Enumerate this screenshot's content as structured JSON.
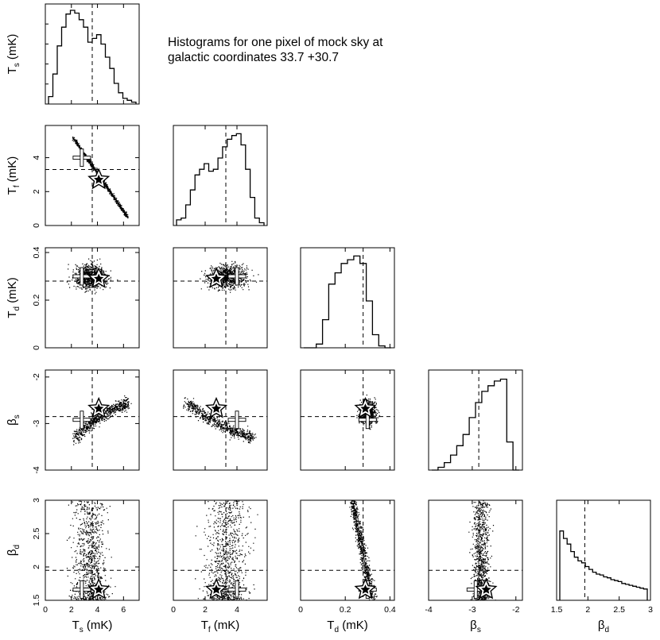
{
  "title": {
    "line1": "Histograms for one pixel of mock sky at",
    "line2": "galactic coordinates 33.7 +30.7"
  },
  "colors": {
    "ink": "#000000",
    "background": "#ffffff",
    "marker_fill": "#ffffff"
  },
  "chart_data": {
    "type": "scatter",
    "layout": "corner-plot (lower triangle of pairwise scatter plots, histograms on the diagonal)",
    "variables": [
      {
        "key": "Ts",
        "label_main": "T",
        "label_sub": "s",
        "label_unit": " (mK)",
        "range": [
          0,
          7.2
        ],
        "ticks": [
          0,
          2,
          4,
          6
        ],
        "true_value": 3.6,
        "best_fit": 4.1,
        "cross": 2.8
      },
      {
        "key": "Tf",
        "label_main": "T",
        "label_sub": "f",
        "label_unit": " (mK)",
        "range": [
          0,
          5.9
        ],
        "ticks": [
          0,
          2,
          4
        ],
        "true_value": 3.3,
        "best_fit": 2.7,
        "cross": 4.0
      },
      {
        "key": "Td",
        "label_main": "T",
        "label_sub": "d",
        "label_unit": " (mK)",
        "range": [
          0,
          0.42
        ],
        "ticks": [
          0,
          0.2,
          0.4
        ],
        "tick_labels": [
          "0",
          "0.2",
          "0.4"
        ],
        "true_value": 0.28,
        "best_fit": 0.29,
        "cross": 0.3
      },
      {
        "key": "bs",
        "label_main": "β",
        "label_sub": "s",
        "label_unit": "",
        "range": [
          -4,
          -1.85
        ],
        "ticks": [
          -4,
          -3,
          -2
        ],
        "true_value": -2.85,
        "best_fit": -2.68,
        "cross": -2.92
      },
      {
        "key": "bd",
        "label_main": "β",
        "label_sub": "d",
        "label_unit": "",
        "range": [
          1.5,
          3
        ],
        "ticks": [
          1.5,
          2,
          2.5,
          3
        ],
        "tick_labels": [
          "1.5",
          "2",
          "2.5",
          "3"
        ],
        "true_value": 1.95,
        "best_fit": 1.66,
        "cross": 1.66
      }
    ],
    "histograms": {
      "Ts": [
        0.08,
        0.32,
        0.62,
        0.82,
        0.96,
        1.0,
        0.97,
        0.9,
        0.82,
        0.66,
        0.7,
        0.74,
        0.64,
        0.5,
        0.38,
        0.22,
        0.12,
        0.06,
        0.04,
        0.02
      ],
      "Tf": [
        0.06,
        0.08,
        0.22,
        0.38,
        0.54,
        0.6,
        0.66,
        0.58,
        0.6,
        0.72,
        0.84,
        0.92,
        0.96,
        0.98,
        0.86,
        0.6,
        0.3,
        0.08,
        0.03
      ],
      "Td": [
        0.0,
        0.0,
        0.04,
        0.3,
        0.68,
        0.8,
        0.9,
        0.94,
        0.98,
        0.9,
        0.5,
        0.14,
        0.02,
        0.0
      ],
      "bs": [
        0.0,
        0.03,
        0.08,
        0.16,
        0.26,
        0.38,
        0.56,
        0.72,
        0.84,
        0.9,
        0.95,
        0.97,
        0.3,
        0.0
      ],
      "bd": [
        0.74,
        0.66,
        0.6,
        0.52,
        0.46,
        0.42,
        0.4,
        0.36,
        0.33,
        0.3,
        0.28,
        0.27,
        0.25,
        0.24,
        0.22,
        0.21,
        0.2,
        0.18,
        0.17,
        0.16,
        0.15,
        0.14,
        0.13,
        0.12
      ]
    },
    "scatter_clouds": {
      "Tf_vs_Ts": {
        "shape": "narrow anticorrelated line",
        "from": [
          2.1,
          5.2
        ],
        "to": [
          6.3,
          0.5
        ],
        "points": 700
      },
      "Td_vs_Ts": {
        "shape": "blob",
        "center": [
          3.4,
          0.3
        ],
        "spread": [
          0.85,
          0.025
        ],
        "points": 900
      },
      "Td_vs_Tf": {
        "shape": "blob",
        "center": [
          3.4,
          0.3
        ],
        "spread": [
          0.85,
          0.025
        ],
        "points": 900
      },
      "Td_vs_Td": null,
      "bs_vs_Ts": {
        "shape": "curved band",
        "from": [
          2.2,
          -3.3
        ],
        "to": [
          6.3,
          -2.55
        ],
        "points": 700
      },
      "bs_vs_Tf": {
        "shape": "curved band",
        "from": [
          0.8,
          -2.55
        ],
        "to": [
          5.0,
          -3.3
        ],
        "points": 700
      },
      "bs_vs_Td": {
        "shape": "blob",
        "center": [
          0.3,
          -2.75
        ],
        "spread": [
          0.025,
          0.14
        ],
        "points": 800
      },
      "bd_vs_Ts": {
        "shape": "vertical spread",
        "center_x": 3.4,
        "spread_x": 0.9,
        "points": 900
      },
      "bd_vs_Tf": {
        "shape": "vertical spread",
        "center_x": 3.4,
        "spread_x": 0.9,
        "points": 900
      },
      "bd_vs_Td": {
        "shape": "tilted band",
        "from": [
          0.23,
          3.0
        ],
        "to": [
          0.32,
          1.5
        ],
        "points": 800
      },
      "bd_vs_bs": {
        "shape": "vertical spread",
        "center_x": -2.8,
        "spread_x": 0.14,
        "points": 900
      }
    },
    "legend": "none",
    "grid": false
  }
}
